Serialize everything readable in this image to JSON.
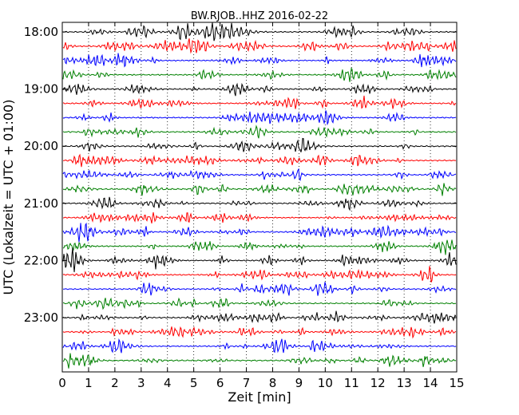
{
  "chart_data": {
    "type": "line",
    "title": "BW.RJOB..HHZ 2016-02-22",
    "xlabel": "Zeit  [min]",
    "ylabel": "UTC (Lokalzeit = UTC + 01:00)",
    "xlim": [
      0,
      15
    ],
    "x_ticks": [
      "0",
      "1",
      "2",
      "3",
      "4",
      "5",
      "6",
      "7",
      "8",
      "9",
      "10",
      "11",
      "12",
      "13",
      "14",
      "15"
    ],
    "y_ticks": [
      {
        "label": "18:00",
        "row": 0
      },
      {
        "label": "19:00",
        "row": 4
      },
      {
        "label": "20:00",
        "row": 8
      },
      {
        "label": "21:00",
        "row": 12
      },
      {
        "label": "22:00",
        "row": 16
      },
      {
        "label": "23:00",
        "row": 20
      }
    ],
    "rows": 24,
    "minutes_per_row": 15,
    "row_colors": [
      "#000000",
      "#ff0000",
      "#0000ff",
      "#008000"
    ],
    "vertical_grid": "dotted"
  }
}
